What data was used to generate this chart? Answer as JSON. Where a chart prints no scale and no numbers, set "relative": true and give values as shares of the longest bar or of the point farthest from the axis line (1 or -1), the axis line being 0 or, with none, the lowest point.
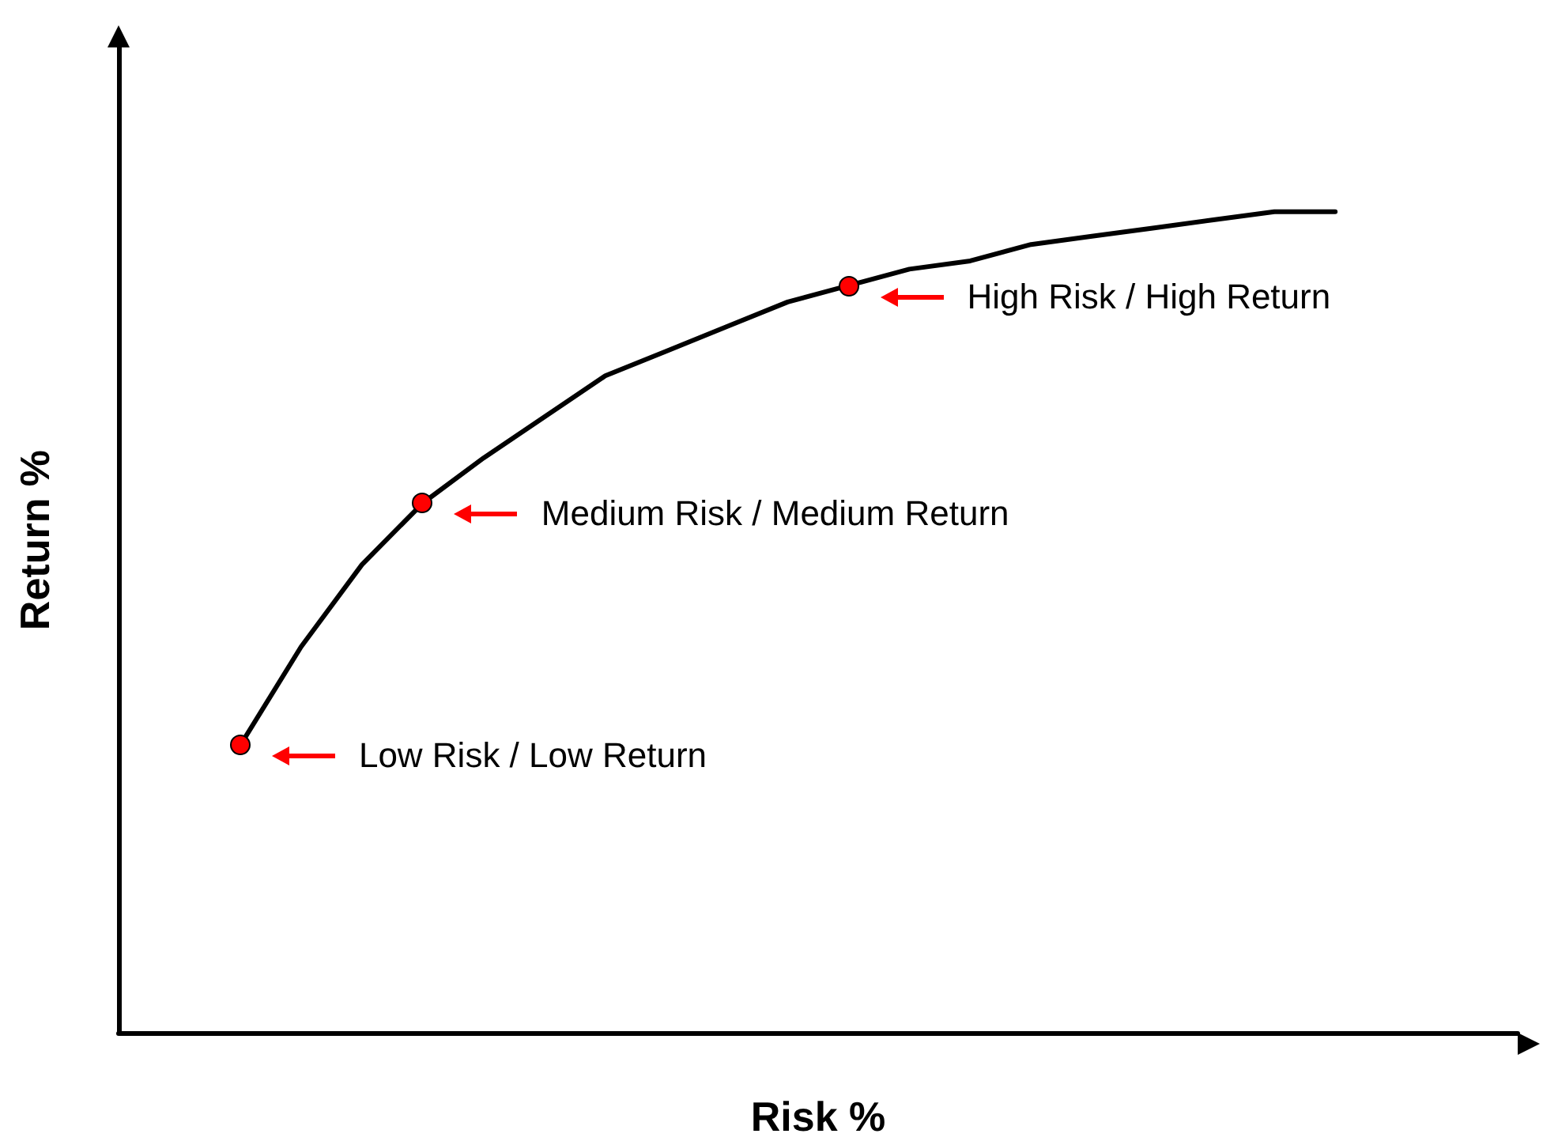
{
  "chart_data": {
    "type": "line",
    "relative": true,
    "xlabel": "Risk %",
    "ylabel": "Return %",
    "tick_labels": false,
    "categories": [
      null,
      null,
      null,
      null,
      null,
      null,
      null,
      null,
      null,
      null,
      null,
      null,
      null,
      null,
      null,
      null,
      null,
      null,
      null,
      null,
      null,
      null,
      null,
      null
    ],
    "series": [
      {
        "color": "#000000",
        "line_style": "solid",
        "values": [
          null,
          null,
          0.35,
          0.47,
          0.57,
          0.645,
          0.7,
          0.75,
          0.8,
          0.83,
          0.86,
          0.89,
          0.91,
          0.93,
          0.94,
          0.96,
          0.97,
          0.98,
          0.99,
          1.0,
          1.0,
          null,
          null,
          null
        ]
      }
    ],
    "annotations": [
      "Low Risk / Low Return",
      "Medium Risk / Medium Return",
      "High Risk / High Return"
    ]
  }
}
